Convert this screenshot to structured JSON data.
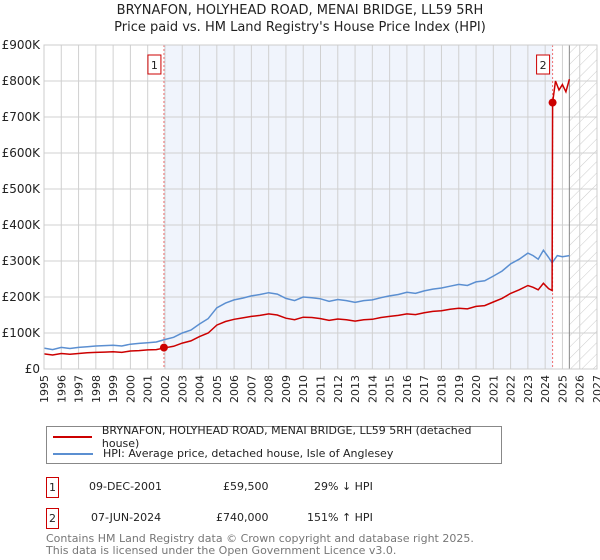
{
  "chart_data": {
    "type": "line",
    "title": "BRYNAFON, HOLYHEAD ROAD, MENAI BRIDGE, LL59 5RH",
    "subtitle": "Price paid vs. HM Land Registry's House Price Index (HPI)",
    "xlim": [
      1995,
      2027
    ],
    "ylim": [
      0,
      900000
    ],
    "x_ticks": [
      "1995",
      "1996",
      "1997",
      "1998",
      "1999",
      "2000",
      "2001",
      "2002",
      "2003",
      "2004",
      "2005",
      "2006",
      "2007",
      "2008",
      "2009",
      "2010",
      "2011",
      "2012",
      "2013",
      "2014",
      "2015",
      "2016",
      "2017",
      "2018",
      "2019",
      "2020",
      "2021",
      "2022",
      "2023",
      "2024",
      "2025",
      "2026",
      "2027"
    ],
    "y_ticks": [
      {
        "v": 0,
        "label": "£0"
      },
      {
        "v": 100000,
        "label": "£100K"
      },
      {
        "v": 200000,
        "label": "£200K"
      },
      {
        "v": 300000,
        "label": "£300K"
      },
      {
        "v": 400000,
        "label": "£400K"
      },
      {
        "v": 500000,
        "label": "£500K"
      },
      {
        "v": 600000,
        "label": "£600K"
      },
      {
        "v": 700000,
        "label": "£700K"
      },
      {
        "v": 800000,
        "label": "£800K"
      },
      {
        "v": 900000,
        "label": "£900K"
      }
    ],
    "grid": true,
    "shaded_period": [
      2001.94,
      2024.43
    ],
    "forecast_hatched_from": 2025.4,
    "series": [
      {
        "name": "BRYNAFON, HOLYHEAD ROAD, MENAI BRIDGE, LL59 5RH (detached house)",
        "color": "#cc0000",
        "x": [
          1995,
          1995.5,
          1996,
          1996.5,
          1997,
          1997.5,
          1998,
          1998.5,
          1999,
          1999.5,
          2000,
          2000.5,
          2001,
          2001.5,
          2002,
          2002.5,
          2003,
          2003.5,
          2004,
          2004.5,
          2005,
          2005.5,
          2006,
          2006.5,
          2007,
          2007.5,
          2008,
          2008.5,
          2009,
          2009.5,
          2010,
          2010.5,
          2011,
          2011.5,
          2012,
          2012.5,
          2013,
          2013.5,
          2014,
          2014.5,
          2015,
          2015.5,
          2016,
          2016.5,
          2017,
          2017.5,
          2018,
          2018.5,
          2019,
          2019.5,
          2020,
          2020.5,
          2021,
          2021.5,
          2022,
          2022.5,
          2023,
          2023.3,
          2023.6,
          2023.9,
          2024.2,
          2024.4,
          2024.43,
          2024.6,
          2024.8,
          2025,
          2025.2,
          2025.4
        ],
        "y": [
          42000,
          39000,
          43000,
          41000,
          43000,
          45000,
          46000,
          47000,
          48000,
          46000,
          50000,
          51000,
          53000,
          54000,
          59000,
          63000,
          72000,
          78000,
          90000,
          100000,
          122000,
          132000,
          138000,
          142000,
          146000,
          149000,
          153000,
          150000,
          141000,
          137000,
          144000,
          143000,
          140000,
          135000,
          139000,
          137000,
          133000,
          137000,
          138000,
          143000,
          146000,
          149000,
          153000,
          151000,
          156000,
          160000,
          162000,
          166000,
          169000,
          167000,
          174000,
          176000,
          186000,
          196000,
          210000,
          220000,
          232000,
          227000,
          220000,
          238000,
          223000,
          218000,
          740000,
          800000,
          775000,
          790000,
          770000,
          805000
        ]
      },
      {
        "name": "HPI: Average price, detached house, Isle of Anglesey",
        "color": "#5b8fd1",
        "x": [
          1995,
          1995.5,
          1996,
          1996.5,
          1997,
          1997.5,
          1998,
          1998.5,
          1999,
          1999.5,
          2000,
          2000.5,
          2001,
          2001.5,
          2002,
          2002.5,
          2003,
          2003.5,
          2004,
          2004.5,
          2005,
          2005.5,
          2006,
          2006.5,
          2007,
          2007.5,
          2008,
          2008.5,
          2009,
          2009.5,
          2010,
          2010.5,
          2011,
          2011.5,
          2012,
          2012.5,
          2013,
          2013.5,
          2014,
          2014.5,
          2015,
          2015.5,
          2016,
          2016.5,
          2017,
          2017.5,
          2018,
          2018.5,
          2019,
          2019.5,
          2020,
          2020.5,
          2021,
          2021.5,
          2022,
          2022.5,
          2023,
          2023.3,
          2023.6,
          2023.9,
          2024.2,
          2024.4,
          2024.7,
          2025,
          2025.4
        ],
        "y": [
          58000,
          54000,
          60000,
          57000,
          60000,
          62000,
          64000,
          65000,
          66000,
          64000,
          69000,
          71000,
          73000,
          75000,
          82000,
          88000,
          100000,
          108000,
          125000,
          140000,
          170000,
          183000,
          192000,
          197000,
          203000,
          207000,
          212000,
          208000,
          196000,
          190000,
          200000,
          198000,
          195000,
          188000,
          193000,
          190000,
          185000,
          190000,
          192000,
          198000,
          203000,
          207000,
          213000,
          210000,
          217000,
          222000,
          225000,
          230000,
          235000,
          232000,
          242000,
          245000,
          258000,
          272000,
          292000,
          305000,
          322000,
          315000,
          305000,
          330000,
          310000,
          295000,
          315000,
          312000,
          315000
        ]
      }
    ],
    "sales": [
      {
        "id": "1",
        "x": 2001.94,
        "y": 59500,
        "date": "09-DEC-2001",
        "price": "£59,500",
        "hpi": "29% ↓ HPI"
      },
      {
        "id": "2",
        "x": 2024.43,
        "y": 740000,
        "date": "07-JUN-2024",
        "price": "£740,000",
        "hpi": "151% ↑ HPI"
      }
    ]
  },
  "legend": {
    "property": "BRYNAFON, HOLYHEAD ROAD, MENAI BRIDGE, LL59 5RH (detached house)",
    "hpi": "HPI: Average price, detached house, Isle of Anglesey"
  },
  "footer": {
    "line1": "Contains HM Land Registry data © Crown copyright and database right 2025.",
    "line2": "This data is licensed under the Open Government Licence v3.0."
  }
}
